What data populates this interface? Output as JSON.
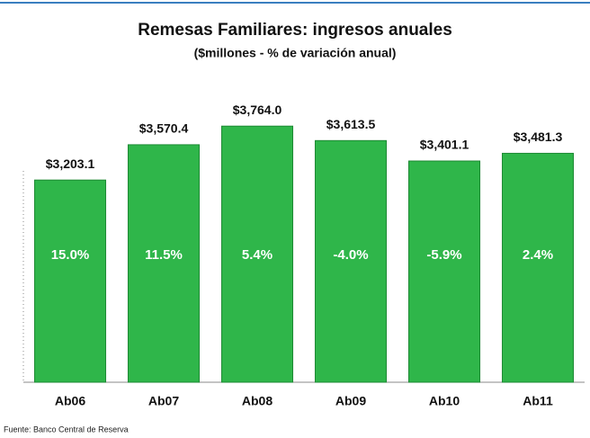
{
  "chart_data": {
    "type": "bar",
    "title": "Remesas Familiares: ingresos anuales",
    "subtitle": "($millones - % de variación anual)",
    "categories": [
      "Ab06",
      "Ab07",
      "Ab08",
      "Ab09",
      "Ab10",
      "Ab11"
    ],
    "values": [
      3203.1,
      3570.4,
      3764.0,
      3613.5,
      3401.1,
      3481.3
    ],
    "value_labels": [
      "$3,203.1",
      "$3,570.4",
      "$3,764.0",
      "$3,613.5",
      "$3,401.1",
      "$3,481.3"
    ],
    "annotations": [
      "15.0%",
      "11.5%",
      "5.4%",
      "-4.0%",
      "-5.9%",
      "2.4%"
    ],
    "color": "#2fb64a",
    "ylim": [
      1100,
      4000
    ],
    "source": "Fuente: Banco Central de Reserva"
  }
}
